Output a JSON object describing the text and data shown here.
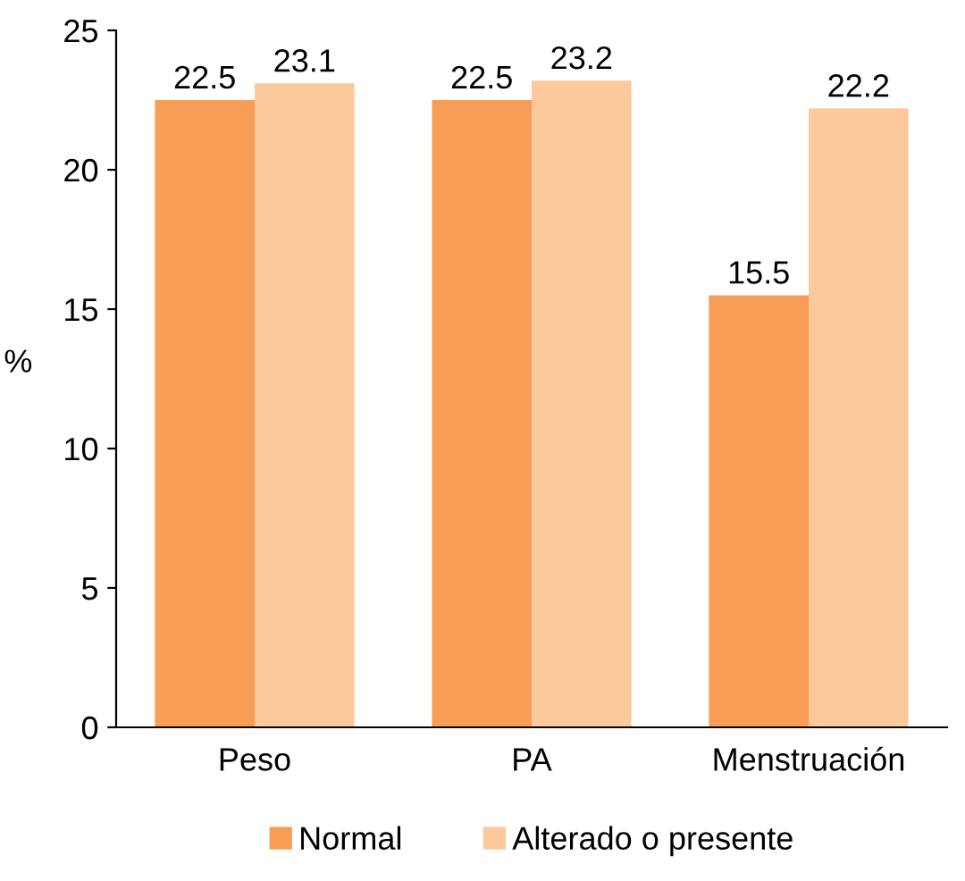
{
  "chart_data": {
    "type": "bar",
    "ylabel": "%",
    "categories": [
      "Peso",
      "PA",
      "Menstruación"
    ],
    "series": [
      {
        "name": "Normal",
        "color": "#f79d56",
        "values": [
          22.5,
          22.5,
          15.5
        ]
      },
      {
        "name": "Alterado o presente",
        "color": "#fbc99c",
        "values": [
          23.1,
          23.2,
          22.2
        ]
      }
    ],
    "ylim": [
      0,
      25
    ],
    "yticks": [
      0,
      5,
      10,
      15,
      20,
      25
    ],
    "data_labels": true,
    "legend": "bottom",
    "grid": false
  }
}
